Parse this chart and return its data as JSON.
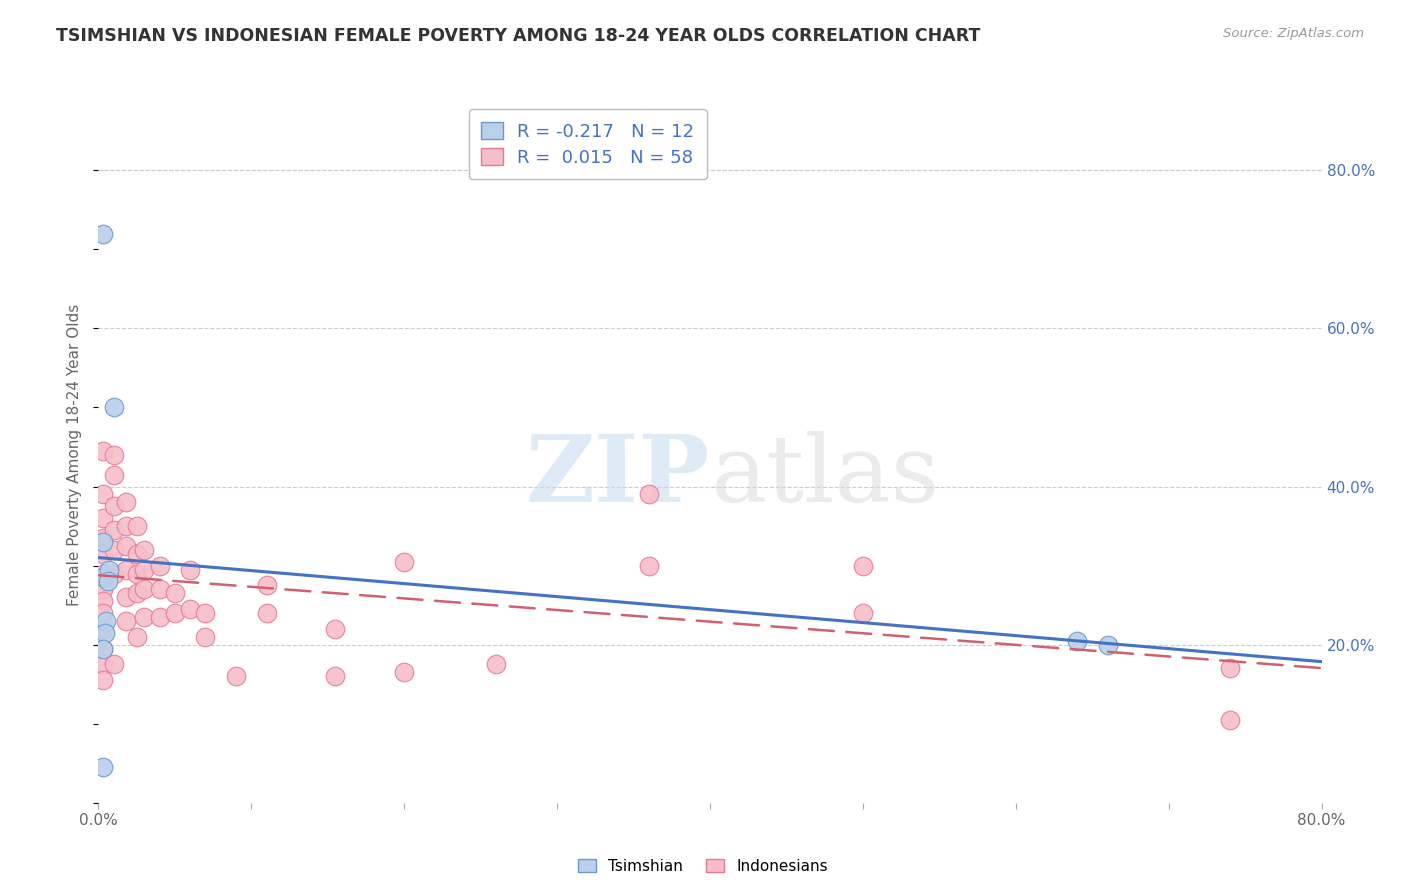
{
  "title": "TSIMSHIAN VS INDONESIAN FEMALE POVERTY AMONG 18-24 YEAR OLDS CORRELATION CHART",
  "source": "Source: ZipAtlas.com",
  "ylabel": "Female Poverty Among 18-24 Year Olds",
  "xlim": [
    0.0,
    0.8
  ],
  "ylim": [
    0.0,
    0.88
  ],
  "xticks": [
    0.0,
    0.1,
    0.2,
    0.3,
    0.4,
    0.5,
    0.6,
    0.7,
    0.8
  ],
  "yticks_right": [
    0.2,
    0.4,
    0.6,
    0.8
  ],
  "ytick_right_labels": [
    "20.0%",
    "40.0%",
    "60.0%",
    "80.0%"
  ],
  "grid_color": "#cccccc",
  "background_color": "#ffffff",
  "tsimshian_color": "#b8d0ea",
  "indonesian_color": "#f5bec8",
  "tsimshian_edge_color": "#6898d0",
  "indonesian_edge_color": "#e87898",
  "tsimshian_line_color": "#4472c4",
  "indonesian_line_color": "#d06070",
  "tsimshian_R": -0.217,
  "tsimshian_N": 12,
  "indonesian_R": 0.015,
  "indonesian_N": 58,
  "watermark_zip": "ZIP",
  "watermark_atlas": "atlas",
  "tsimshian_x": [
    0.003,
    0.01,
    0.003,
    0.003,
    0.007,
    0.006,
    0.005,
    0.004,
    0.003,
    0.64,
    0.66,
    0.003
  ],
  "tsimshian_y": [
    0.72,
    0.5,
    0.33,
    0.285,
    0.295,
    0.28,
    0.23,
    0.215,
    0.195,
    0.205,
    0.2,
    0.045
  ],
  "indonesian_x": [
    0.003,
    0.003,
    0.003,
    0.003,
    0.003,
    0.003,
    0.003,
    0.003,
    0.003,
    0.003,
    0.003,
    0.003,
    0.003,
    0.01,
    0.01,
    0.01,
    0.01,
    0.01,
    0.01,
    0.01,
    0.018,
    0.018,
    0.018,
    0.018,
    0.018,
    0.018,
    0.025,
    0.025,
    0.025,
    0.025,
    0.025,
    0.03,
    0.03,
    0.03,
    0.03,
    0.04,
    0.04,
    0.04,
    0.05,
    0.05,
    0.06,
    0.06,
    0.07,
    0.07,
    0.09,
    0.11,
    0.11,
    0.155,
    0.155,
    0.2,
    0.2,
    0.26,
    0.36,
    0.36,
    0.5,
    0.5,
    0.74,
    0.74
  ],
  "indonesian_y": [
    0.445,
    0.39,
    0.36,
    0.335,
    0.315,
    0.29,
    0.27,
    0.255,
    0.24,
    0.22,
    0.195,
    0.175,
    0.155,
    0.44,
    0.415,
    0.375,
    0.345,
    0.32,
    0.29,
    0.175,
    0.38,
    0.35,
    0.325,
    0.295,
    0.26,
    0.23,
    0.35,
    0.315,
    0.29,
    0.265,
    0.21,
    0.32,
    0.295,
    0.27,
    0.235,
    0.3,
    0.27,
    0.235,
    0.265,
    0.24,
    0.295,
    0.245,
    0.24,
    0.21,
    0.16,
    0.275,
    0.24,
    0.22,
    0.16,
    0.305,
    0.165,
    0.175,
    0.39,
    0.3,
    0.3,
    0.24,
    0.17,
    0.105
  ]
}
